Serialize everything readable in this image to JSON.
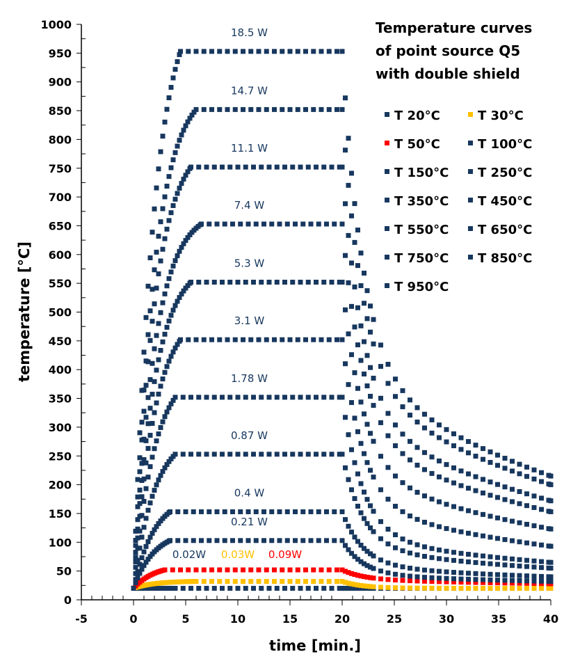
{
  "chart_data": {
    "type": "scatter",
    "title": [
      "Temperature curves",
      "of point source Q5",
      "with double shield"
    ],
    "xlabel": "time [min.]",
    "ylabel": "temperature [°C]",
    "xlim": [
      -5,
      40
    ],
    "ylim": [
      0,
      1000
    ],
    "xticks": [
      "-5",
      "0",
      "5",
      "10",
      "15",
      "20",
      "25",
      "30",
      "35",
      "40"
    ],
    "yticks": [
      "0",
      "50",
      "100",
      "150",
      "200",
      "250",
      "300",
      "350",
      "400",
      "450",
      "500",
      "550",
      "600",
      "650",
      "700",
      "750",
      "800",
      "850",
      "900",
      "950",
      "1000"
    ],
    "grid": false,
    "legend_position": "top-right",
    "heating_off_time_min": 20,
    "colors": {
      "navy": "#17375E",
      "yellow": "#FFC000",
      "red": "#FF0000"
    },
    "series": [
      {
        "name": "T   20°C",
        "color": "#17375E",
        "start": 20,
        "plateau": 20,
        "reach_min": 4,
        "end_40min": 16,
        "power_label": "0.02W"
      },
      {
        "name": "T   30°C",
        "color": "#FFC000",
        "start": 20,
        "plateau": 32,
        "reach_min": 6,
        "end_40min": 20,
        "power_label": "0.03W"
      },
      {
        "name": "T   50°C",
        "color": "#FF0000",
        "start": 20,
        "plateau": 52,
        "reach_min": 3,
        "end_40min": 28,
        "power_label": "0.09W"
      },
      {
        "name": "T 100°C",
        "color": "#17375E",
        "start": 20,
        "plateau": 103,
        "reach_min": 3.5,
        "end_40min": 32,
        "power_label": "0.21 W"
      },
      {
        "name": "T 150°C",
        "color": "#17375E",
        "start": 20,
        "plateau": 153,
        "reach_min": 3.5,
        "end_40min": 40,
        "power_label": "0.4 W"
      },
      {
        "name": "T 250°C",
        "color": "#17375E",
        "start": 20,
        "plateau": 253,
        "reach_min": 4,
        "end_40min": 55,
        "power_label": "0.87 W"
      },
      {
        "name": "T 350°C",
        "color": "#17375E",
        "start": 20,
        "plateau": 352,
        "reach_min": 4,
        "end_40min": 65,
        "power_label": "1.78 W"
      },
      {
        "name": "T 450°C",
        "color": "#17375E",
        "start": 20,
        "plateau": 452,
        "reach_min": 4.5,
        "end_40min": 93,
        "power_label": "3.1 W"
      },
      {
        "name": "T 550°C",
        "color": "#17375E",
        "start": 20,
        "plateau": 552,
        "reach_min": 5.5,
        "end_40min": 123,
        "power_label": "5.3 W"
      },
      {
        "name": "T 650°C",
        "color": "#17375E",
        "start": 20,
        "plateau": 653,
        "reach_min": 6.5,
        "end_40min": 153,
        "power_label": "7.4 W"
      },
      {
        "name": "T 750°C",
        "color": "#17375E",
        "start": 20,
        "plateau": 752,
        "reach_min": 5.5,
        "end_40min": 172,
        "power_label": "11.1 W"
      },
      {
        "name": "T 850°C",
        "color": "#17375E",
        "start": 20,
        "plateau": 852,
        "reach_min": 6,
        "end_40min": 200,
        "power_label": "14.7 W"
      },
      {
        "name": "T 950°C",
        "color": "#17375E",
        "start": 20,
        "plateau": 953,
        "reach_min": 4.5,
        "end_40min": 215,
        "power_label": "18.5 W"
      }
    ]
  }
}
